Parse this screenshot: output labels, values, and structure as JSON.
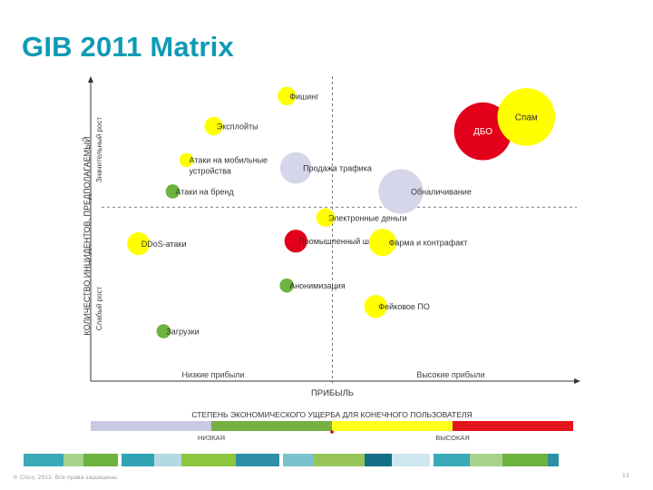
{
  "title": "GIB 2011 Matrix",
  "footer": {
    "copyright": "© Cisco, 2012. Все права защищены.",
    "page_number": "13"
  },
  "colors": {
    "title": "#0f9ab5",
    "yellow": "#ffff00",
    "red": "#e2001a",
    "green": "#6cb33f",
    "lavender": "#d6d6ea",
    "axis": "#333333",
    "legend_lavender": "#c9c9e3",
    "legend_green": "#76b043",
    "legend_yellow": "#ffff1a",
    "legend_red": "#e3141b"
  },
  "chart_data": {
    "type": "scatter",
    "xlabel": "ПРИБЫЛЬ",
    "ylabel_top": "КОЛИЧЕСТВО ИНЦИДЕНТОВ, ПРЕДПОЛАГАЕМЫЙ",
    "ylabel_bottom_left": "Слабый рост",
    "ylabel_bottom_right": "Значительный рост",
    "x_zone_labels": [
      "Низкие прибыли",
      "Высокие прибыли"
    ],
    "xlim": [
      0,
      10
    ],
    "ylim": [
      0,
      10
    ],
    "divider_x": 5,
    "divider_y": 5.2,
    "points": [
      {
        "label": "Фишинг",
        "x": 4.0,
        "y": 9.45,
        "size": 3,
        "color": "yellow"
      },
      {
        "label": "Эксплойты",
        "x": 2.4,
        "y": 8.3,
        "size": 3,
        "color": "yellow"
      },
      {
        "label": "Атаки на мобильные устройства",
        "x": 1.8,
        "y": 7.0,
        "size": 2,
        "color": "yellow"
      },
      {
        "label": "Продажа трафика",
        "x": 4.2,
        "y": 6.7,
        "size": 6,
        "color": "lavender"
      },
      {
        "label": "Атаки на бренд",
        "x": 1.5,
        "y": 5.8,
        "size": 2,
        "color": "green"
      },
      {
        "label": "Обналичивание",
        "x": 6.5,
        "y": 5.8,
        "size": 9,
        "color": "lavender"
      },
      {
        "label": "Электронные деньги",
        "x": 4.85,
        "y": 4.8,
        "size": 3,
        "color": "yellow"
      },
      {
        "label": "DDoS-атаки",
        "x": 0.75,
        "y": 3.8,
        "size": 4,
        "color": "yellow"
      },
      {
        "label": "Промышленный шпионаж",
        "x": 4.2,
        "y": 3.9,
        "size": 4,
        "color": "red"
      },
      {
        "label": "Фарма и контрафакт",
        "x": 6.1,
        "y": 3.85,
        "size": 5,
        "color": "yellow"
      },
      {
        "label": "Анонимизация",
        "x": 4.0,
        "y": 2.2,
        "size": 2,
        "color": "green"
      },
      {
        "label": "Фейковое ПО",
        "x": 5.95,
        "y": 1.4,
        "size": 4,
        "color": "yellow"
      },
      {
        "label": "Загрузки",
        "x": 1.3,
        "y": 0.45,
        "size": 2,
        "color": "green"
      },
      {
        "label": "ДБО",
        "x": 8.3,
        "y": 8.1,
        "size": 12,
        "color": "red"
      },
      {
        "label": "Спам",
        "x": 9.25,
        "y": 8.65,
        "size": 12,
        "color": "yellow"
      }
    ],
    "legend": {
      "title": "СТЕПЕНЬ ЭКОНОМИЧЕСКОГО УЩЕРБА ДЛЯ КОНЕЧНОГО ПОЛЬЗОВАТЕЛЯ",
      "low_label": "НИЗКАЯ",
      "high_label": "ВЫСОКАЯ",
      "segments": [
        "lavender",
        "green",
        "yellow",
        "red"
      ]
    },
    "footer_band": [
      "#3aa9b8",
      "#a7d28c",
      "#6cb33f",
      "#ffffff",
      "#30a4b5",
      "#b3d9e3",
      "#8cc63f",
      "#2c8fa6",
      "#ffffff",
      "#7cc2ce",
      "#98c55a",
      "#126f87",
      "#cde6f0",
      "#ffffff",
      "#3aa9b8",
      "#a7d28c",
      "#6cb33f",
      "#2c8fa6"
    ]
  }
}
